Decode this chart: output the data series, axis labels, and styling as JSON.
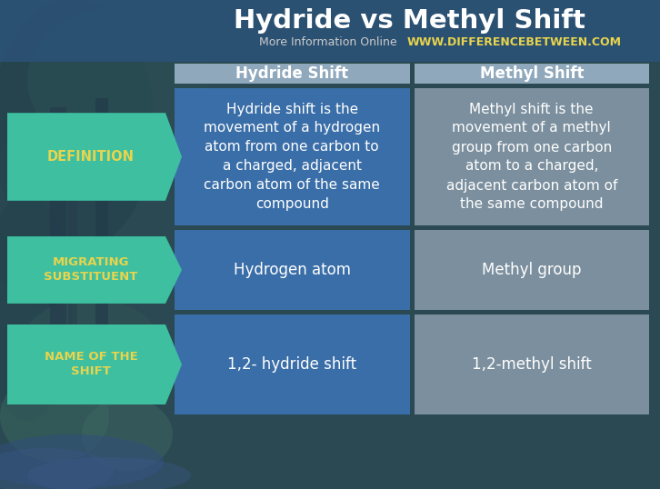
{
  "title": "Hydride vs Methyl Shift",
  "subtitle_gray": "More Information Online  ",
  "subtitle_url": "WWW.DIFFERENCEBETWEEN.COM",
  "col1_header": "Hydride Shift",
  "col2_header": "Methyl Shift",
  "rows": [
    {
      "label": "DEFINITION",
      "col1": "Hydride shift is the\nmovement of a hydrogen\natom from one carbon to\na charged, adjacent\ncarbon atom of the same\ncompound",
      "col2": "Methyl shift is the\nmovement of a methyl\ngroup from one carbon\natom to a charged,\nadjacent carbon atom of\nthe same compound"
    },
    {
      "label": "MIGRATING\nSUBSTITUENT",
      "col1": "Hydrogen atom",
      "col2": "Methyl group"
    },
    {
      "label": "NAME OF THE\nSHIFT",
      "col1": "1,2- hydride shift",
      "col2": "1,2-methyl shift"
    }
  ],
  "bg_dark_blue": "#2b5278",
  "header_bg_color": "#8fa8bc",
  "col1_cell_color": "#3a6ea8",
  "col2_cell_color": "#7b8f9e",
  "arrow_color": "#3dbfa0",
  "arrow_text_color": "#e8d44d",
  "title_color": "#ffffff",
  "subtitle_gray_color": "#cccccc",
  "subtitle_url_color": "#e8d44d",
  "cell_text_color": "#ffffff",
  "header_text_color": "#ffffff",
  "nature_green_dark": "#2d4a1e",
  "nature_green_mid": "#3a6b2a",
  "nature_blue_sky": "#4a7a9b"
}
